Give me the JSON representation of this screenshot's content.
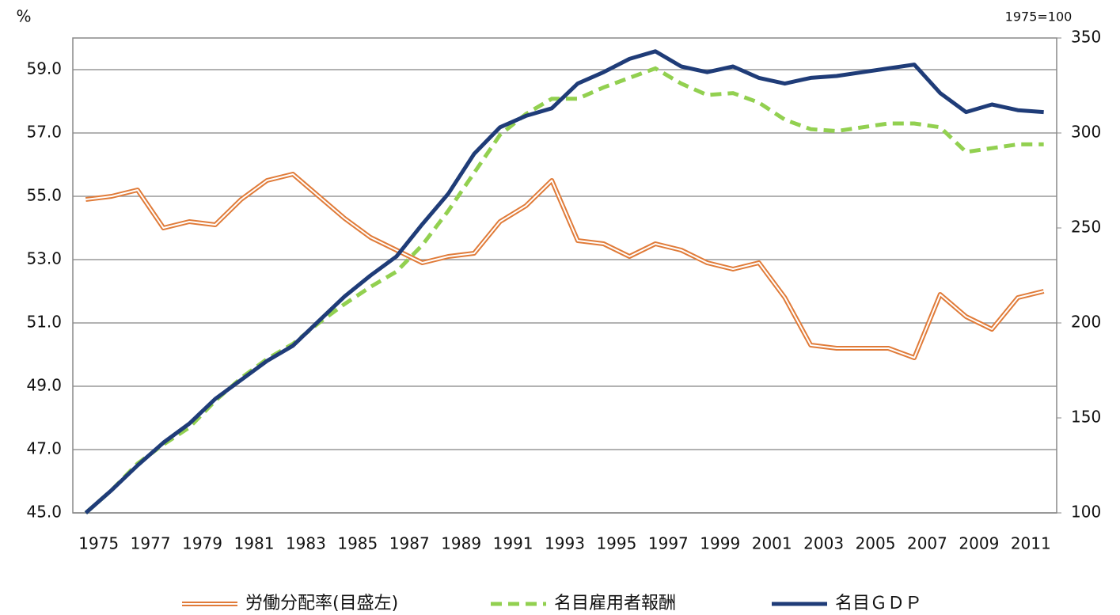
{
  "chart_data": {
    "type": "line",
    "y_label": "%",
    "y2_label": "1975=100",
    "categories": [
      "1975",
      null,
      "1977",
      null,
      "1979",
      null,
      "1981",
      null,
      "1983",
      null,
      "1985",
      null,
      "1987",
      null,
      "1989",
      null,
      "1991",
      null,
      "1993",
      null,
      "1995",
      null,
      "1997",
      null,
      "1999",
      null,
      "2001",
      null,
      "2003",
      null,
      "2005",
      null,
      "2007",
      null,
      "2009",
      null,
      "2011",
      null
    ],
    "series": [
      {
        "name": "労働分配率(目盛左)",
        "color": "#e07b39",
        "axis": "y",
        "values": [
          54.9,
          55.0,
          55.2,
          54.0,
          54.2,
          54.1,
          54.9,
          55.5,
          55.7,
          55.0,
          54.3,
          53.7,
          53.3,
          52.9,
          53.1,
          53.2,
          54.2,
          54.7,
          55.5,
          53.6,
          53.5,
          53.1,
          53.5,
          53.3,
          52.9,
          52.7,
          52.9,
          51.8,
          50.3,
          50.2,
          50.2,
          50.2,
          49.9,
          51.9,
          51.2,
          50.8,
          51.8,
          52.0
        ]
      },
      {
        "name": "名目雇用者報酬",
        "color": "#92d050",
        "axis": "y2",
        "values": [
          100,
          112,
          126,
          136,
          145,
          159,
          171,
          181,
          189,
          200,
          210,
          219,
          227,
          241,
          259,
          279,
          299,
          310,
          318,
          318,
          324,
          329,
          334,
          326,
          320,
          321,
          316,
          307,
          302,
          301,
          303,
          305,
          305,
          303,
          290,
          292,
          294,
          294
        ]
      },
      {
        "name": "名目ＧＤＰ",
        "color": "#1f3c78",
        "axis": "y2",
        "values": [
          100,
          112,
          125,
          137,
          147,
          160,
          170,
          180,
          188,
          201,
          214,
          225,
          235,
          252,
          268,
          289,
          303,
          309,
          313,
          326,
          332,
          339,
          343,
          335,
          332,
          335,
          329,
          326,
          329,
          330,
          332,
          334,
          336,
          321,
          311,
          315,
          312,
          311
        ]
      }
    ],
    "ylim": [
      45,
      60
    ],
    "yticks": [
      {
        "value": 45,
        "label": "45.0"
      },
      {
        "value": 47,
        "label": "47.0"
      },
      {
        "value": 49,
        "label": "49.0"
      },
      {
        "value": 51,
        "label": "51.0"
      },
      {
        "value": 53,
        "label": "53.0"
      },
      {
        "value": 55,
        "label": "55.0"
      },
      {
        "value": 57,
        "label": "57.0"
      },
      {
        "value": 59,
        "label": "59.0"
      }
    ],
    "y2lim": [
      100,
      350
    ],
    "y2ticks": [
      100,
      150,
      200,
      250,
      300,
      350
    ],
    "grid": true
  }
}
